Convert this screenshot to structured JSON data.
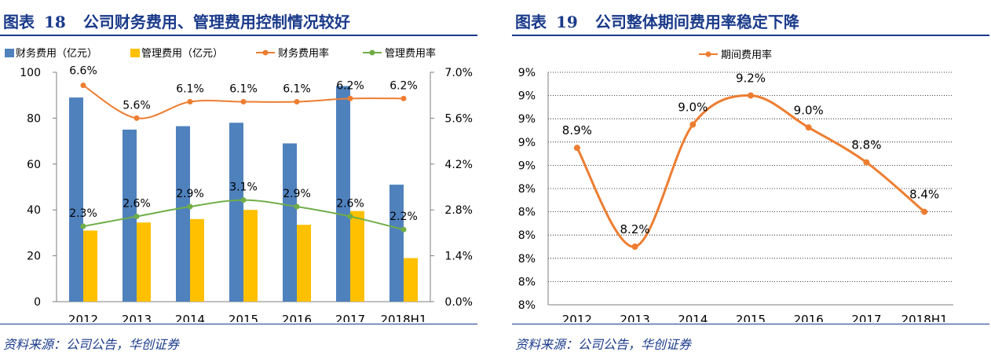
{
  "left": {
    "fig_label": "图表",
    "fig_number": "18",
    "title": "公司财务费用、管理费用控制情况较好",
    "source": "资料来源：公司公告，华创证券"
  },
  "right": {
    "fig_label": "图表",
    "fig_number": "19",
    "title": "公司整体期间费用率稳定下降",
    "source": "资料来源：公司公告，华创证券"
  },
  "colors": {
    "finance_bar": "#4f81bd",
    "admin_bar": "#ffc000",
    "finance_rate": "#ed7d31",
    "admin_rate": "#70ad47",
    "period_rate": "#ed7d31",
    "title_blue": "#1a3a8a"
  },
  "chart_data": [
    {
      "type": "bar",
      "categories": [
        "2012",
        "2013",
        "2014",
        "2015",
        "2016",
        "2017",
        "2018H1"
      ],
      "series": [
        {
          "name": "财务费用（亿元）",
          "type": "bar",
          "axis": "left",
          "values": [
            89,
            75,
            76.5,
            78,
            69,
            94,
            51
          ]
        },
        {
          "name": "管理费用（亿元）",
          "type": "bar",
          "axis": "left",
          "values": [
            31,
            34.5,
            36,
            40,
            33.5,
            39.5,
            19
          ]
        },
        {
          "name": "财务费用率",
          "type": "line",
          "axis": "right",
          "values": [
            6.6,
            5.6,
            6.1,
            6.1,
            6.1,
            6.2,
            6.2
          ],
          "labels": [
            "6.6%",
            "5.6%",
            "6.1%",
            "6.1%",
            "6.1%",
            "6.2%",
            "6.2%"
          ]
        },
        {
          "name": "管理费用率",
          "type": "line",
          "axis": "right",
          "values": [
            2.3,
            2.6,
            2.9,
            3.1,
            2.9,
            2.6,
            2.2
          ],
          "labels": [
            "2.3%",
            "2.6%",
            "2.9%",
            "3.1%",
            "2.9%",
            "2.6%",
            "2.2%"
          ]
        }
      ],
      "y_left": {
        "range": [
          0,
          100
        ],
        "ticks": [
          "0",
          "20",
          "40",
          "60",
          "80",
          "100"
        ]
      },
      "y_right": {
        "range": [
          0,
          7
        ],
        "ticks": [
          "0.0%",
          "1.4%",
          "2.8%",
          "4.2%",
          "5.6%",
          "7.0%"
        ]
      },
      "grid": false,
      "legend_position": "top"
    },
    {
      "type": "line",
      "categories": [
        "2012",
        "2013",
        "2014",
        "2015",
        "2016",
        "2017",
        "2018H1"
      ],
      "series": [
        {
          "name": "期间费用率",
          "values": [
            8.88,
            8.2,
            9.04,
            9.24,
            9.02,
            8.78,
            8.44
          ],
          "labels": [
            "8.9%",
            "8.2%",
            "9.0%",
            "9.2%",
            "9.0%",
            "8.8%",
            "8.4%"
          ]
        }
      ],
      "y": {
        "range": [
          7.8,
          9.4
        ],
        "ticks": [
          "8%",
          "8%",
          "8%",
          "8%",
          "8%",
          "8%",
          "9%",
          "9%",
          "9%",
          "9%",
          "9%"
        ]
      },
      "grid": true,
      "legend_position": "top"
    }
  ]
}
